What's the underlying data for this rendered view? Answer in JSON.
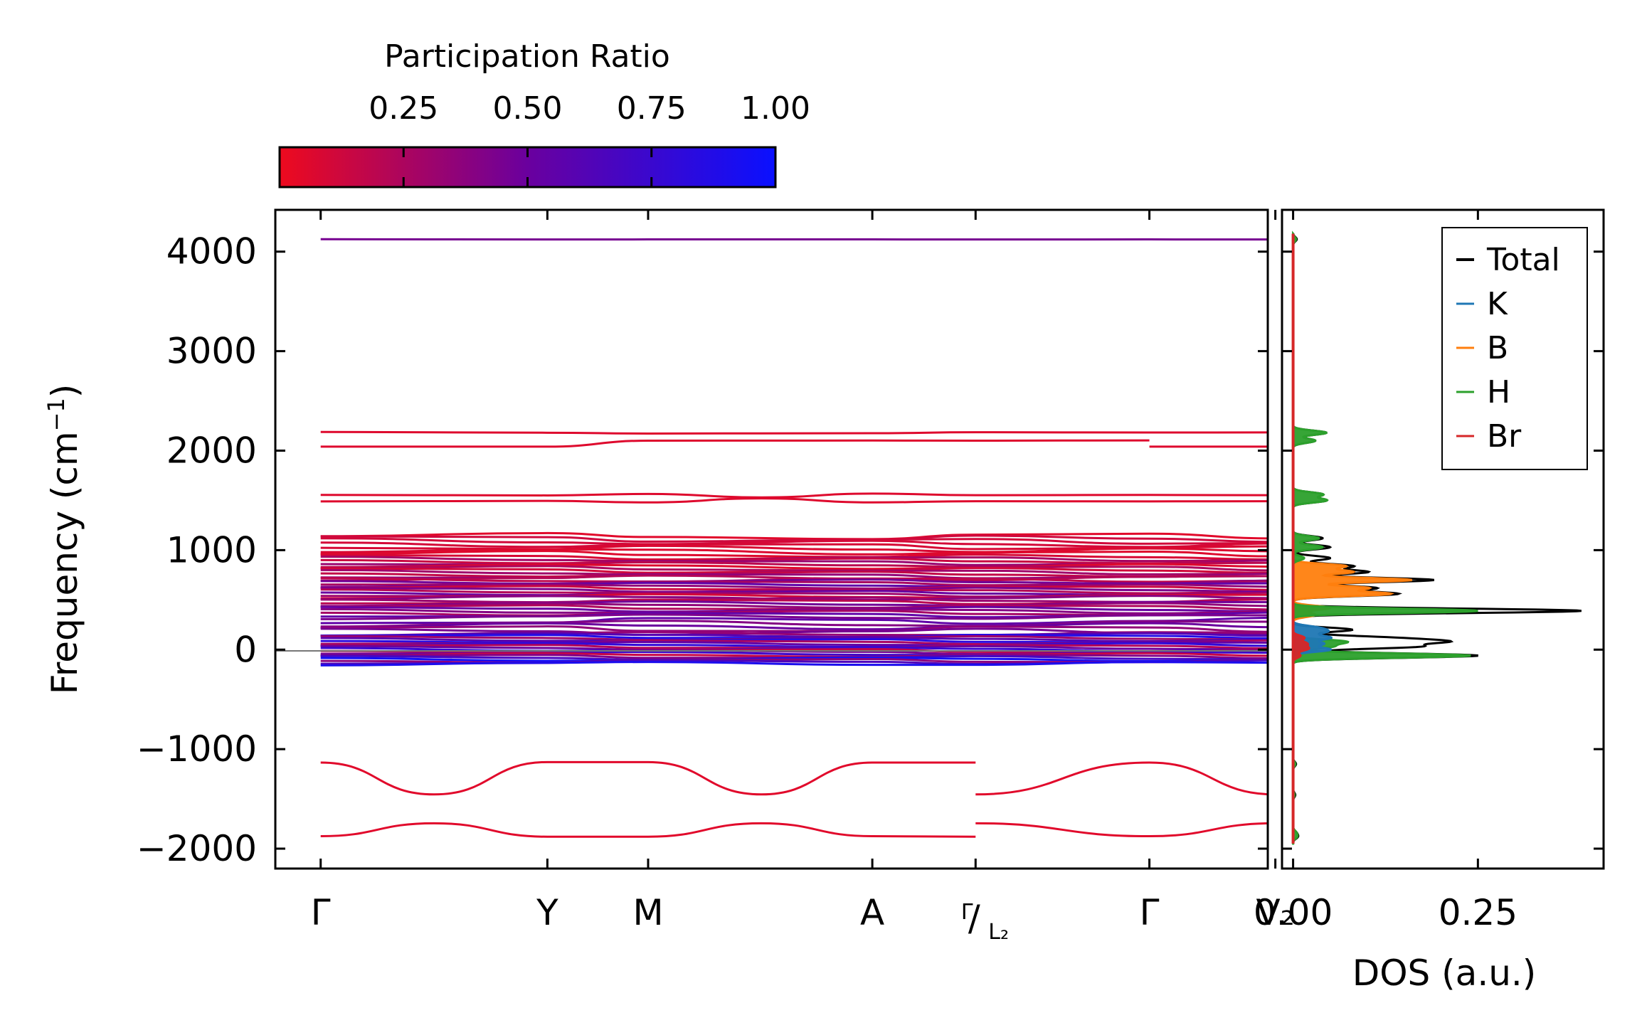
{
  "colorbar": {
    "title": "Participation Ratio",
    "ticks": [
      0.25,
      0.5,
      0.75,
      1.0
    ],
    "tick_labels": [
      "0.25",
      "0.50",
      "0.75",
      "1.00"
    ],
    "range": [
      0.0,
      1.0
    ],
    "color_low": "#ee0a1e",
    "color_mid": "#6a009e",
    "color_high": "#0a10ff"
  },
  "chart_data": [
    {
      "type": "line",
      "name": "phonon-band-structure",
      "ylabel": "Frequency (cm",
      "ylabel_sup": "−1",
      "ylabel_close": ")",
      "ylim": [
        -2200,
        4420
      ],
      "yticks": [
        -2000,
        -1000,
        0,
        1000,
        2000,
        3000,
        4000
      ],
      "ytick_labels": [
        "−2000",
        "−1000",
        "0",
        "1000",
        "2000",
        "3000",
        "4000"
      ],
      "xlim": [
        -0.18,
        3.76
      ],
      "kpath": [
        {
          "x": 0.0,
          "label": "Γ"
        },
        {
          "x": 0.9,
          "label": "Y"
        },
        {
          "x": 1.3,
          "label": "M"
        },
        {
          "x": 2.19,
          "label": "A"
        },
        {
          "x": 2.6,
          "label": "Γ",
          "label2": "L₂",
          "split": true
        },
        {
          "x": 3.29,
          "label": "Γ"
        },
        {
          "x": 3.79,
          "label": "V₂"
        }
      ],
      "segment_breaks": [
        2.6
      ],
      "bands": [
        {
          "name": "high-H-stretch",
          "pr": 0.45,
          "points": [
            [
              0,
              4125
            ],
            [
              0.9,
              4122
            ],
            [
              1.3,
              4123
            ],
            [
              2.19,
              4123
            ],
            [
              2.6,
              4122
            ],
            [
              3.29,
              4123
            ],
            [
              3.79,
              4122
            ]
          ]
        },
        {
          "name": "upper-2180",
          "pr": 0.06,
          "points": [
            [
              0,
              2188
            ],
            [
              0.9,
              2180
            ],
            [
              1.3,
              2172
            ],
            [
              2.19,
              2175
            ],
            [
              2.6,
              2185
            ],
            [
              3.29,
              2182
            ],
            [
              3.79,
              2183
            ]
          ]
        },
        {
          "name": "upper-2040",
          "pr": 0.06,
          "points": [
            [
              0,
              2040
            ],
            [
              0.9,
              2040
            ],
            [
              1.3,
              2100
            ],
            [
              2.19,
              2102
            ],
            [
              2.6,
              2100
            ],
            [
              3.29,
              2103
            ],
            [
              3.29,
              2040
            ],
            [
              3.79,
              2040
            ]
          ]
        },
        {
          "name": "band-1550",
          "pr": 0.06,
          "points": [
            [
              0,
              1555
            ],
            [
              0.9,
              1550
            ],
            [
              1.3,
              1565
            ],
            [
              1.75,
              1530
            ],
            [
              2.19,
              1568
            ],
            [
              2.6,
              1552
            ],
            [
              3.29,
              1555
            ],
            [
              3.79,
              1552
            ]
          ]
        },
        {
          "name": "band-1490",
          "pr": 0.06,
          "points": [
            [
              0,
              1490
            ],
            [
              0.9,
              1495
            ],
            [
              1.3,
              1480
            ],
            [
              1.75,
              1520
            ],
            [
              2.19,
              1480
            ],
            [
              2.6,
              1492
            ],
            [
              3.29,
              1490
            ],
            [
              3.79,
              1492
            ]
          ]
        },
        {
          "name": "neg-upper",
          "pr": 0.05,
          "points": [
            [
              0,
              -1135
            ],
            [
              0.45,
              -1455
            ],
            [
              0.9,
              -1130
            ],
            [
              1.3,
              -1130
            ],
            [
              1.75,
              -1455
            ],
            [
              2.19,
              -1135
            ],
            [
              2.6,
              -1135
            ],
            [
              2.6,
              -1455
            ],
            [
              3.29,
              -1135
            ],
            [
              3.79,
              -1455
            ]
          ]
        },
        {
          "name": "neg-lower",
          "pr": 0.05,
          "points": [
            [
              0,
              -1875
            ],
            [
              0.45,
              -1745
            ],
            [
              0.9,
              -1880
            ],
            [
              1.3,
              -1880
            ],
            [
              1.75,
              -1745
            ],
            [
              2.19,
              -1875
            ],
            [
              2.6,
              -1880
            ],
            [
              2.6,
              -1745
            ],
            [
              3.29,
              -1875
            ],
            [
              3.79,
              -1745
            ]
          ]
        }
      ],
      "band_manifolds": [
        {
          "name": "mid-manifold-a",
          "pr_start": 0.05,
          "pr_end": 0.12,
          "y_from": 1140,
          "y_to": 960,
          "count": 8
        },
        {
          "name": "mid-manifold-b",
          "pr_start": 0.06,
          "pr_end": 0.35,
          "y_from": 930,
          "y_to": 720,
          "count": 12
        },
        {
          "name": "mid-manifold-c",
          "pr_start": 0.1,
          "pr_end": 0.55,
          "y_from": 700,
          "y_to": 520,
          "count": 12
        },
        {
          "name": "mid-manifold-d",
          "pr_start": 0.2,
          "pr_end": 0.55,
          "y_from": 500,
          "y_to": 330,
          "count": 10
        },
        {
          "name": "mid-manifold-e",
          "pr_start": 0.35,
          "pr_end": 0.55,
          "y_from": 290,
          "y_to": 180,
          "count": 5
        },
        {
          "name": "low-manifold",
          "pr_start": 0.15,
          "pr_end": 0.95,
          "y_from": 160,
          "y_to": -140,
          "count": 22
        }
      ]
    },
    {
      "type": "line",
      "name": "phonon-dos",
      "xlabel": "DOS (a.u.)",
      "xlim": [
        -0.015,
        0.42
      ],
      "xticks": [
        0.0,
        0.25
      ],
      "xtick_labels": [
        "0.00",
        "0.25"
      ],
      "ylim": [
        -2200,
        4420
      ],
      "legend_position": "top-right",
      "series": [
        {
          "name": "Total",
          "color": "#000000",
          "peaks": [
            [
              -1880,
              0.006
            ],
            [
              -1840,
              0.004
            ],
            [
              -1150,
              0.004
            ],
            [
              -1460,
              0.003
            ],
            [
              -60,
              0.25
            ],
            [
              30,
              0.16
            ],
            [
              80,
              0.18
            ],
            [
              120,
              0.11
            ],
            [
              200,
              0.08
            ],
            [
              390,
              0.39
            ],
            [
              560,
              0.14
            ],
            [
              620,
              0.11
            ],
            [
              700,
              0.19
            ],
            [
              780,
              0.1
            ],
            [
              840,
              0.08
            ],
            [
              920,
              0.05
            ],
            [
              1030,
              0.05
            ],
            [
              1120,
              0.04
            ],
            [
              1500,
              0.045
            ],
            [
              1560,
              0.04
            ],
            [
              2100,
              0.03
            ],
            [
              2180,
              0.045
            ],
            [
              4125,
              0.005
            ]
          ]
        },
        {
          "name": "K",
          "color": "#1f77b4",
          "peaks": [
            [
              0,
              0.05
            ],
            [
              60,
              0.04
            ],
            [
              120,
              0.05
            ],
            [
              180,
              0.04
            ],
            [
              220,
              0.03
            ]
          ]
        },
        {
          "name": "B",
          "color": "#ff7f0e",
          "peaks": [
            [
              350,
              0.03
            ],
            [
              420,
              0.05
            ],
            [
              560,
              0.13
            ],
            [
              620,
              0.1
            ],
            [
              700,
              0.16
            ],
            [
              780,
              0.08
            ],
            [
              840,
              0.07
            ]
          ]
        },
        {
          "name": "H",
          "color": "#2ca02c",
          "peaks": [
            [
              -1880,
              0.005
            ],
            [
              -1840,
              0.004
            ],
            [
              -1150,
              0.003
            ],
            [
              -1460,
              0.002
            ],
            [
              -60,
              0.24
            ],
            [
              30,
              0.05
            ],
            [
              80,
              0.07
            ],
            [
              390,
              0.25
            ],
            [
              920,
              0.015
            ],
            [
              1030,
              0.04
            ],
            [
              1120,
              0.035
            ],
            [
              1500,
              0.045
            ],
            [
              1560,
              0.04
            ],
            [
              2100,
              0.03
            ],
            [
              2180,
              0.045
            ],
            [
              4125,
              0.004
            ]
          ]
        },
        {
          "name": "Br",
          "color": "#d62728",
          "peaks": [
            [
              -60,
              0.01
            ],
            [
              10,
              0.02
            ],
            [
              60,
              0.018
            ],
            [
              120,
              0.015
            ]
          ]
        }
      ]
    }
  ]
}
